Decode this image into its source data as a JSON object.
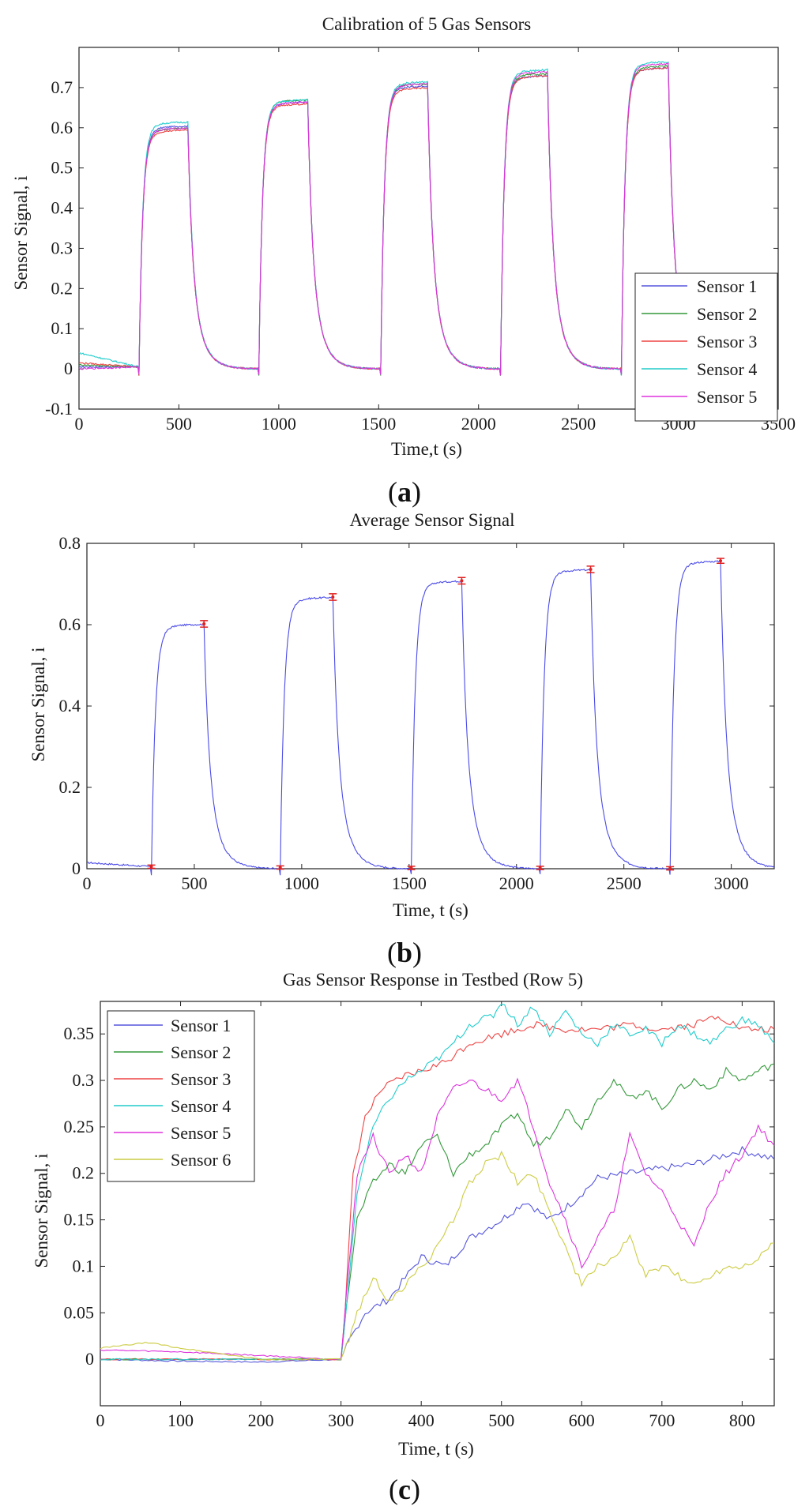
{
  "chart_data": [
    {
      "type": "line",
      "panel": "a",
      "title": "Calibration of 5 Gas Sensors",
      "xlabel": "Time,t (s)",
      "ylabel": "Sensor Signal, i",
      "xlim": [
        0,
        3500
      ],
      "ylim": [
        -0.1,
        0.8
      ],
      "xticks": [
        0,
        500,
        1000,
        1500,
        2000,
        2500,
        3000,
        3500
      ],
      "yticks": [
        -0.1,
        0,
        0.1,
        0.2,
        0.3,
        0.4,
        0.5,
        0.6,
        0.7
      ],
      "legend_position": "bottom-right",
      "steps": [
        {
          "on": 300,
          "off": 545
        },
        {
          "on": 900,
          "off": 1145
        },
        {
          "on": 1510,
          "off": 1745
        },
        {
          "on": 2110,
          "off": 2345
        },
        {
          "on": 2715,
          "off": 2950
        }
      ],
      "series": [
        {
          "name": "Sensor 1",
          "color": "#5555dd",
          "baseline": 0.005,
          "plateaus": [
            0.605,
            0.665,
            0.705,
            0.73,
            0.75
          ]
        },
        {
          "name": "Sensor 2",
          "color": "#33993a",
          "baseline": 0.01,
          "plateaus": [
            0.6,
            0.67,
            0.71,
            0.735,
            0.755
          ]
        },
        {
          "name": "Sensor 3",
          "color": "#ee4444",
          "baseline": 0.015,
          "plateaus": [
            0.595,
            0.66,
            0.7,
            0.73,
            0.75
          ]
        },
        {
          "name": "Sensor 4",
          "color": "#22cccc",
          "baseline": 0.04,
          "plateaus": [
            0.615,
            0.67,
            0.715,
            0.745,
            0.765
          ]
        },
        {
          "name": "Sensor 5",
          "color": "#dd33dd",
          "baseline": 0.0,
          "plateaus": [
            0.6,
            0.665,
            0.71,
            0.74,
            0.76
          ]
        }
      ]
    },
    {
      "type": "line",
      "panel": "b",
      "title": "Average Sensor Signal",
      "xlabel": "Time, t (s)",
      "ylabel": "Sensor Signal, i",
      "xlim": [
        0,
        3200
      ],
      "ylim": [
        0,
        0.8
      ],
      "xticks": [
        0,
        500,
        1000,
        1500,
        2000,
        2500,
        3000
      ],
      "yticks": [
        0,
        0.2,
        0.4,
        0.6,
        0.8
      ],
      "steps": [
        {
          "on": 300,
          "off": 545
        },
        {
          "on": 900,
          "off": 1145
        },
        {
          "on": 1510,
          "off": 1745
        },
        {
          "on": 2110,
          "off": 2345
        },
        {
          "on": 2715,
          "off": 2950
        }
      ],
      "series": [
        {
          "name": "Average",
          "color": "#4a4ae8",
          "baseline": 0.015,
          "plateaus": [
            0.602,
            0.668,
            0.708,
            0.736,
            0.757
          ]
        }
      ],
      "error_bars": [
        {
          "x": 300,
          "y": 0.005,
          "err": 0.004
        },
        {
          "x": 545,
          "y": 0.602,
          "err": 0.008
        },
        {
          "x": 900,
          "y": 0.003,
          "err": 0.004
        },
        {
          "x": 1145,
          "y": 0.668,
          "err": 0.008
        },
        {
          "x": 1510,
          "y": 0.002,
          "err": 0.004
        },
        {
          "x": 1745,
          "y": 0.708,
          "err": 0.008
        },
        {
          "x": 2110,
          "y": 0.002,
          "err": 0.004
        },
        {
          "x": 2345,
          "y": 0.736,
          "err": 0.008
        },
        {
          "x": 2715,
          "y": 0.001,
          "err": 0.004
        },
        {
          "x": 2950,
          "y": 0.757,
          "err": 0.006
        }
      ]
    },
    {
      "type": "line",
      "panel": "c",
      "title": "Gas Sensor Response in Testbed (Row 5)",
      "xlabel": "Time, t (s)",
      "ylabel": "Sensor Signal, i",
      "xlim": [
        0,
        840
      ],
      "ylim": [
        -0.05,
        0.385
      ],
      "xticks": [
        0,
        100,
        200,
        300,
        400,
        500,
        600,
        700,
        800
      ],
      "yticks": [
        0,
        0.05,
        0.1,
        0.15,
        0.2,
        0.25,
        0.3,
        0.35
      ],
      "legend_position": "top-left",
      "series": [
        {
          "name": "Sensor 1",
          "color": "#5555dd",
          "x": [
            0,
            100,
            200,
            300,
            310,
            330,
            360,
            400,
            430,
            460,
            500,
            530,
            560,
            590,
            620,
            660,
            700,
            740,
            780,
            800,
            840
          ],
          "y": [
            0.0,
            -0.002,
            -0.003,
            0.0,
            0.02,
            0.05,
            0.065,
            0.11,
            0.1,
            0.13,
            0.15,
            0.17,
            0.15,
            0.17,
            0.195,
            0.2,
            0.205,
            0.21,
            0.22,
            0.225,
            0.215
          ]
        },
        {
          "name": "Sensor 2",
          "color": "#33993a",
          "x": [
            0,
            100,
            200,
            300,
            310,
            320,
            340,
            360,
            380,
            400,
            420,
            440,
            460,
            480,
            500,
            520,
            540,
            560,
            580,
            600,
            620,
            640,
            660,
            680,
            700,
            720,
            740,
            760,
            780,
            800,
            820,
            840
          ],
          "y": [
            0.0,
            0.0,
            0.0,
            0.0,
            0.08,
            0.15,
            0.19,
            0.21,
            0.2,
            0.23,
            0.24,
            0.2,
            0.22,
            0.23,
            0.25,
            0.265,
            0.23,
            0.24,
            0.27,
            0.25,
            0.28,
            0.3,
            0.28,
            0.29,
            0.27,
            0.29,
            0.3,
            0.29,
            0.31,
            0.3,
            0.31,
            0.318
          ]
        },
        {
          "name": "Sensor 3",
          "color": "#ee4444",
          "x": [
            0,
            100,
            200,
            300,
            305,
            315,
            330,
            350,
            380,
            400,
            430,
            460,
            500,
            540,
            580,
            620,
            660,
            700,
            740,
            770,
            800,
            840
          ],
          "y": [
            0.0,
            0.0,
            0.0,
            0.0,
            0.05,
            0.2,
            0.26,
            0.29,
            0.305,
            0.31,
            0.32,
            0.34,
            0.35,
            0.36,
            0.355,
            0.355,
            0.36,
            0.355,
            0.36,
            0.37,
            0.355,
            0.355
          ]
        },
        {
          "name": "Sensor 4",
          "color": "#22cccc",
          "x": [
            0,
            100,
            200,
            300,
            305,
            320,
            340,
            360,
            380,
            400,
            430,
            460,
            490,
            500,
            520,
            540,
            560,
            580,
            600,
            620,
            640,
            660,
            680,
            700,
            720,
            740,
            760,
            780,
            800,
            820,
            840
          ],
          "y": [
            0.0,
            0.0,
            0.0,
            0.0,
            0.04,
            0.18,
            0.25,
            0.28,
            0.3,
            0.31,
            0.33,
            0.36,
            0.37,
            0.385,
            0.36,
            0.38,
            0.35,
            0.375,
            0.35,
            0.34,
            0.36,
            0.35,
            0.355,
            0.34,
            0.36,
            0.35,
            0.34,
            0.355,
            0.365,
            0.36,
            0.34
          ]
        },
        {
          "name": "Sensor 5",
          "color": "#dd33dd",
          "x": [
            0,
            100,
            200,
            300,
            310,
            320,
            340,
            360,
            380,
            400,
            420,
            440,
            460,
            480,
            500,
            520,
            540,
            560,
            580,
            600,
            620,
            640,
            660,
            680,
            700,
            720,
            740,
            760,
            780,
            800,
            820,
            840
          ],
          "y": [
            0.01,
            0.008,
            0.004,
            0.0,
            0.1,
            0.2,
            0.24,
            0.2,
            0.22,
            0.2,
            0.26,
            0.29,
            0.3,
            0.29,
            0.28,
            0.3,
            0.25,
            0.19,
            0.15,
            0.1,
            0.13,
            0.16,
            0.24,
            0.2,
            0.18,
            0.15,
            0.12,
            0.17,
            0.2,
            0.22,
            0.25,
            0.23
          ]
        },
        {
          "name": "Sensor 6",
          "color": "#cccc44",
          "x": [
            0,
            60,
            100,
            200,
            300,
            310,
            320,
            340,
            360,
            380,
            400,
            420,
            440,
            460,
            480,
            500,
            520,
            540,
            560,
            580,
            600,
            620,
            640,
            660,
            680,
            700,
            720,
            740,
            760,
            780,
            800,
            820,
            840
          ],
          "y": [
            0.012,
            0.018,
            0.012,
            0.0,
            0.0,
            0.02,
            0.05,
            0.09,
            0.06,
            0.08,
            0.1,
            0.12,
            0.15,
            0.19,
            0.21,
            0.22,
            0.19,
            0.2,
            0.16,
            0.12,
            0.08,
            0.1,
            0.11,
            0.13,
            0.09,
            0.1,
            0.09,
            0.08,
            0.09,
            0.1,
            0.1,
            0.11,
            0.125
          ]
        }
      ]
    }
  ]
}
